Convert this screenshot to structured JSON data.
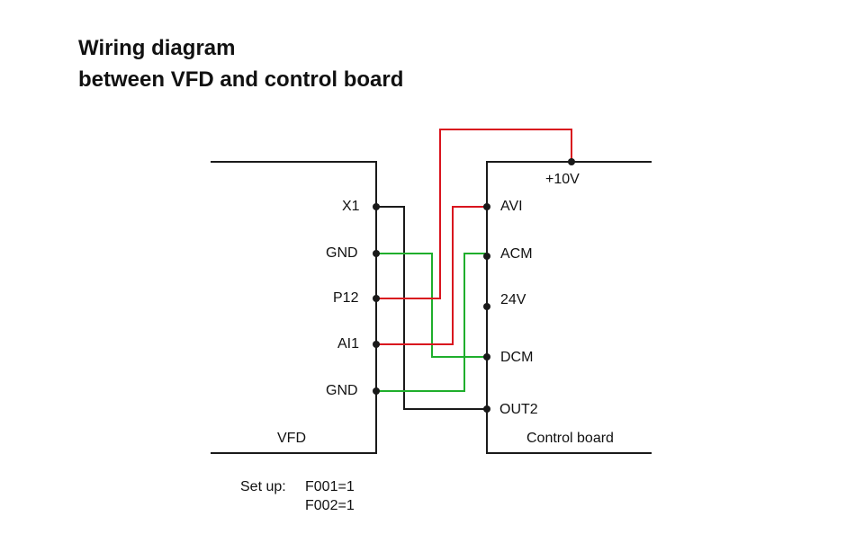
{
  "title": {
    "line1": "Wiring diagram",
    "line2": "between VFD and control board"
  },
  "vfd": {
    "name": "VFD",
    "terminals": [
      "X1",
      "GND",
      "P12",
      "AI1",
      "GND"
    ]
  },
  "board": {
    "name": "Control board",
    "top_terminal": "+10V",
    "terminals": [
      "AVI",
      "ACM",
      "24V",
      "DCM",
      "OUT2"
    ]
  },
  "setup": {
    "label": "Set up:",
    "params": [
      "F001=1",
      "F002=1"
    ]
  },
  "colors": {
    "black": "#1a1a1a",
    "red": "#d9141e",
    "green": "#1fae2c"
  }
}
